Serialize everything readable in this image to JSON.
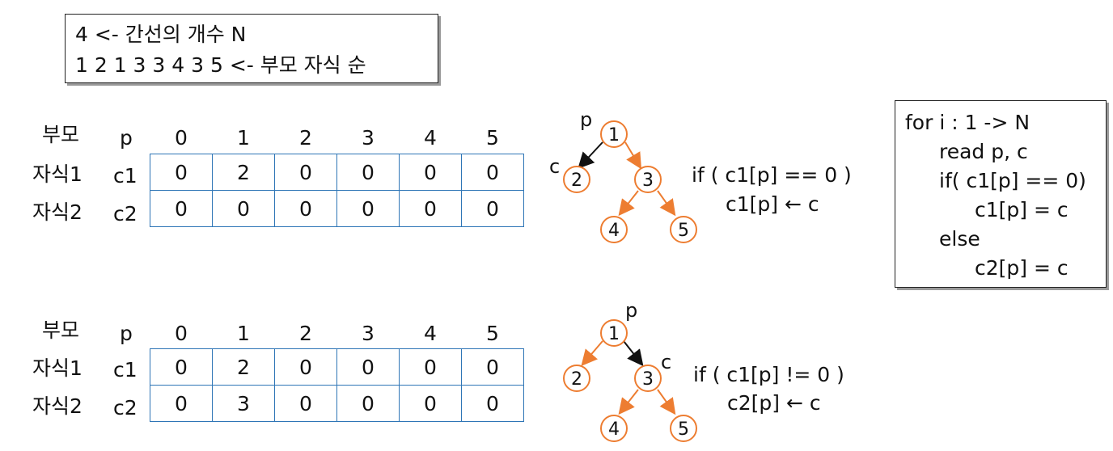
{
  "input_box": {
    "line1": "4 <- 간선의 개수 N",
    "line2": "1 2 1 3 3 4 3 5 <- 부모 자식 순"
  },
  "code_box": {
    "lines": [
      "for i : 1 -> N",
      "read p, c",
      "if( c1[p] == 0)",
      "c1[p] = c",
      "else",
      "c2[p] = c"
    ]
  },
  "panels": [
    {
      "row_header": "부모",
      "p_label": "p",
      "indices": [
        "0",
        "1",
        "2",
        "3",
        "4",
        "5"
      ],
      "rows": [
        {
          "label": "자식1",
          "name": "c1",
          "cells": [
            "0",
            "2",
            "0",
            "0",
            "0",
            "0"
          ]
        },
        {
          "label": "자식2",
          "name": "c2",
          "cells": [
            "0",
            "0",
            "0",
            "0",
            "0",
            "0"
          ]
        }
      ],
      "tree": {
        "nodes": [
          "1",
          "2",
          "3",
          "4",
          "5"
        ],
        "p_mark": "p",
        "c_mark": "c"
      },
      "condition": "if ( c1[p] == 0 )",
      "assignment": "c1[p] ← c"
    },
    {
      "row_header": "부모",
      "p_label": "p",
      "indices": [
        "0",
        "1",
        "2",
        "3",
        "4",
        "5"
      ],
      "rows": [
        {
          "label": "자식1",
          "name": "c1",
          "cells": [
            "0",
            "2",
            "0",
            "0",
            "0",
            "0"
          ]
        },
        {
          "label": "자식2",
          "name": "c2",
          "cells": [
            "0",
            "3",
            "0",
            "0",
            "0",
            "0"
          ]
        }
      ],
      "tree": {
        "nodes": [
          "1",
          "2",
          "3",
          "4",
          "5"
        ],
        "p_mark": "p",
        "c_mark": "c"
      },
      "condition": "if ( c1[p] != 0 )",
      "assignment": "c2[p] ← c"
    }
  ],
  "colors": {
    "array_border": "#2e75b6",
    "tree_orange": "#ed7d31",
    "highlight_arrow": "#111111"
  }
}
